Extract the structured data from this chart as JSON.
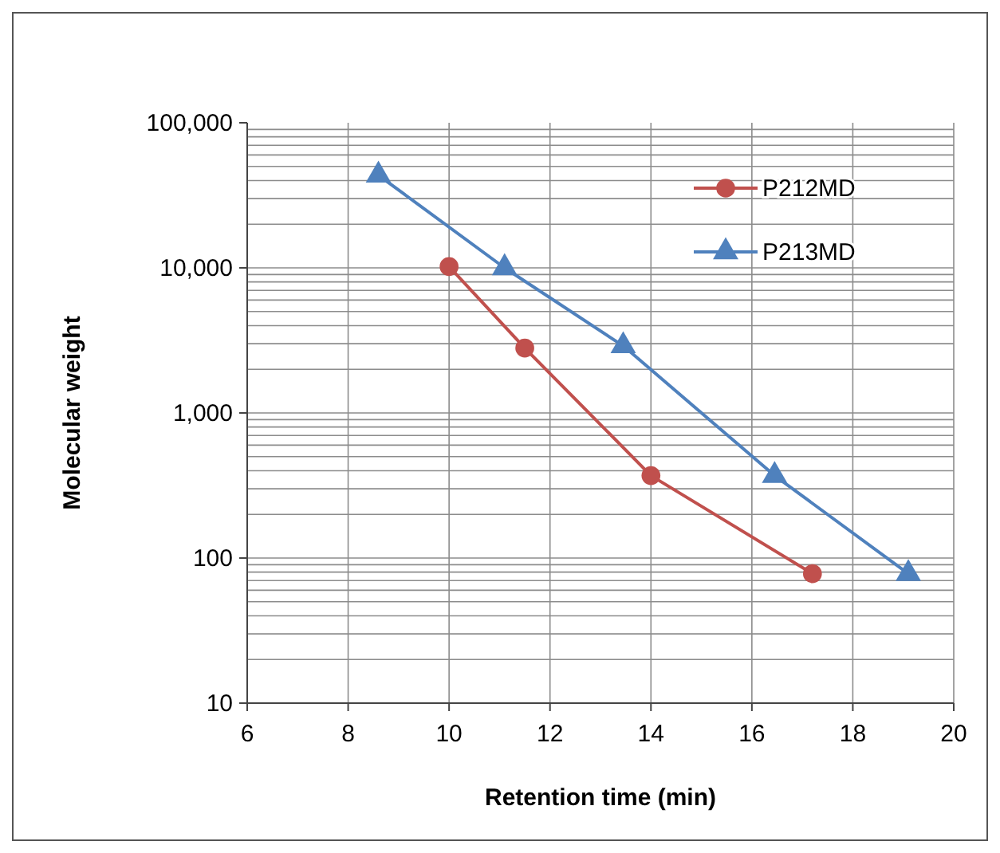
{
  "chart_data": {
    "type": "line",
    "xlabel": "Retention time (min)",
    "ylabel": "Molecular weight",
    "log": "y",
    "grid": true,
    "legend": "top right",
    "xlim": [
      6,
      20
    ],
    "xticks": [
      6,
      8,
      10,
      12,
      14,
      16,
      18,
      20
    ],
    "ylim": [
      10,
      100000
    ],
    "yticks": [
      10,
      100,
      {
        "value": 1000,
        "label": "1,000"
      },
      {
        "value": 10000,
        "label": "10,000"
      },
      {
        "value": 100000,
        "label": "100,000"
      }
    ],
    "series": [
      {
        "name": "P212MD",
        "color": "#c0504d",
        "marker": "circle",
        "x": [
          10.0,
          11.5,
          14.0,
          17.2
        ],
        "values": [
          10200,
          2800,
          370,
          78
        ]
      },
      {
        "name": "P213MD",
        "color": "#4f81bd",
        "marker": "triangle",
        "x": [
          8.6,
          11.1,
          13.45,
          16.45,
          19.1
        ],
        "values": [
          43500,
          10000,
          2900,
          370,
          78
        ]
      }
    ]
  }
}
